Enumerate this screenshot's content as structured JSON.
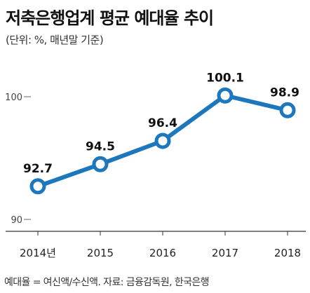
{
  "chart_data": {
    "type": "line",
    "title": "저축은행업계 평균 예대율 추이",
    "subtitle": "(단위: %, 매년말 기준)",
    "categories": [
      "2014년",
      "2015",
      "2016",
      "2017",
      "2018"
    ],
    "series": [
      {
        "values": [
          92.7,
          94.5,
          96.4,
          100.1,
          98.9
        ]
      }
    ],
    "data_labels": [
      "92.7",
      "94.5",
      "96.4",
      "100.1",
      "98.9"
    ],
    "y_ticks": [
      {
        "value": 90,
        "label": "90"
      },
      {
        "value": 100,
        "label": "100"
      }
    ],
    "ylim": [
      90,
      101.9
    ],
    "grid": false,
    "line_color": "#1d77bd",
    "marker_fill": "#ffffff",
    "note": "예대율 = 여신액/수신액. 자료: 금융감독원, 한국은행"
  }
}
